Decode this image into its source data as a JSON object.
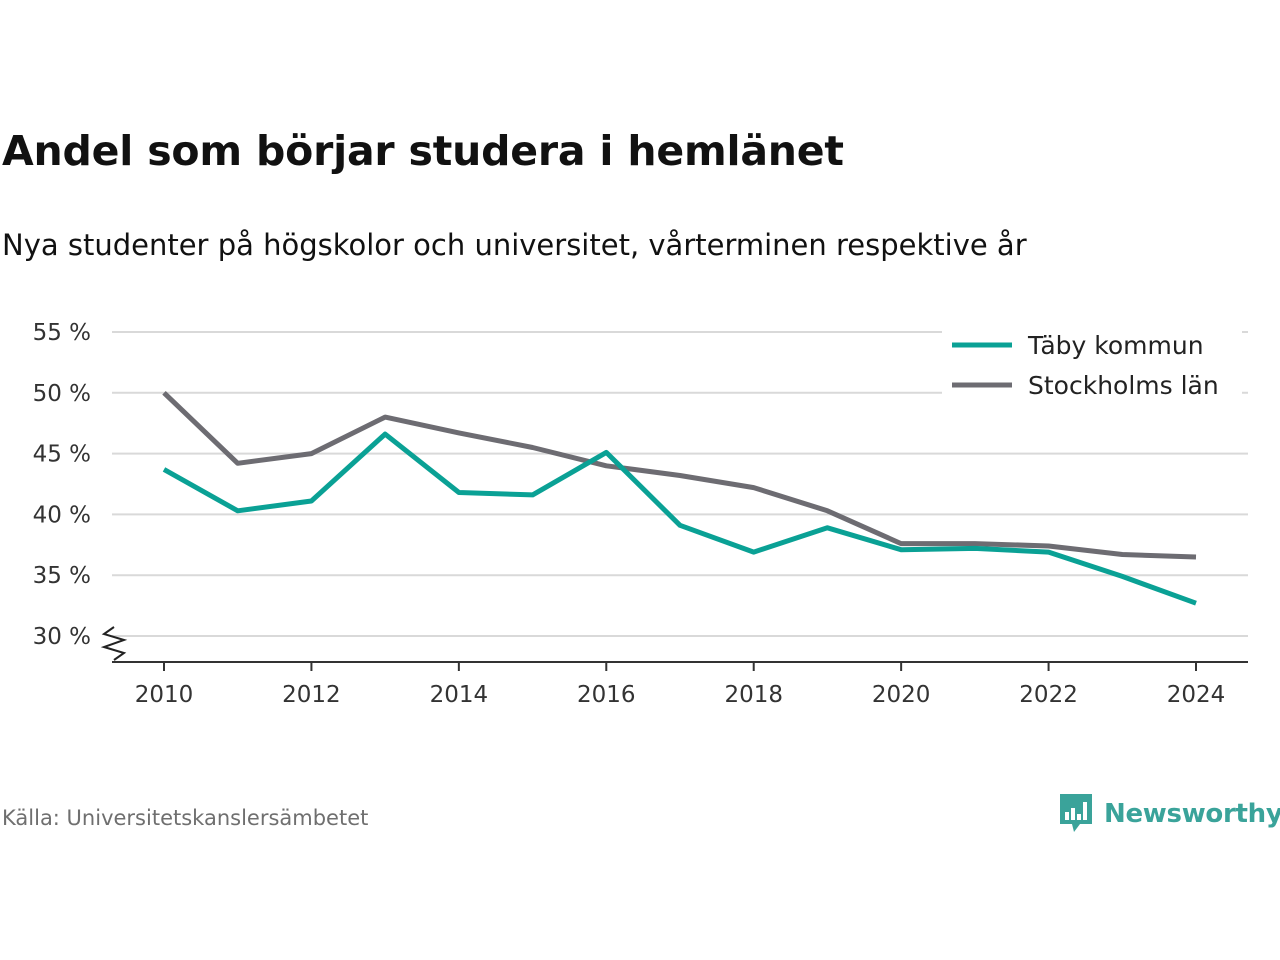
{
  "header": {
    "title": "Andel som börjar studera i hemlänet",
    "subtitle": "Nya studenter på högskolor och universitet, vårterminen respektive år"
  },
  "footer": {
    "source": "Källa: Universitetskanslersämbetet",
    "brand": "Newsworthy",
    "brand_icon": "bar-chart-speech-bubble-icon"
  },
  "colors": {
    "taby": "#0aa195",
    "stockholm": "#6d6c72",
    "grid": "#d9d9d9",
    "axis": "#333333",
    "brand": "#3aa39a"
  },
  "chart_data": {
    "type": "line",
    "title": "Andel som börjar studera i hemlänet",
    "subtitle": "Nya studenter på högskolor och universitet, vårterminen respektive år",
    "x": [
      2010,
      2011,
      2012,
      2013,
      2014,
      2015,
      2016,
      2017,
      2018,
      2019,
      2020,
      2021,
      2022,
      2023,
      2024
    ],
    "xticks": [
      2010,
      2012,
      2014,
      2016,
      2018,
      2020,
      2022,
      2024
    ],
    "xtick_labels": [
      "2010",
      "2012",
      "2014",
      "2016",
      "2018",
      "2020",
      "2022",
      "2024"
    ],
    "xlim": [
      2009.3,
      2024.7
    ],
    "yticks": [
      30,
      35,
      40,
      45,
      50,
      55
    ],
    "ytick_labels": [
      "30 %",
      "35 %",
      "40 %",
      "45 %",
      "50 %",
      "55 %"
    ],
    "ylim": [
      28,
      55
    ],
    "y_axis_break": true,
    "grid": true,
    "legend_position": "top-right",
    "series": [
      {
        "name": "Täby kommun",
        "color": "#0aa195",
        "values": [
          43.7,
          40.3,
          41.1,
          46.6,
          41.8,
          41.6,
          45.1,
          39.1,
          36.9,
          38.9,
          37.1,
          37.2,
          36.9,
          34.9,
          32.7
        ]
      },
      {
        "name": "Stockholms län",
        "color": "#6d6c72",
        "values": [
          50.0,
          44.2,
          45.0,
          48.0,
          46.7,
          45.5,
          44.0,
          43.2,
          42.2,
          40.3,
          37.6,
          37.6,
          37.4,
          36.7,
          36.5
        ]
      }
    ]
  }
}
